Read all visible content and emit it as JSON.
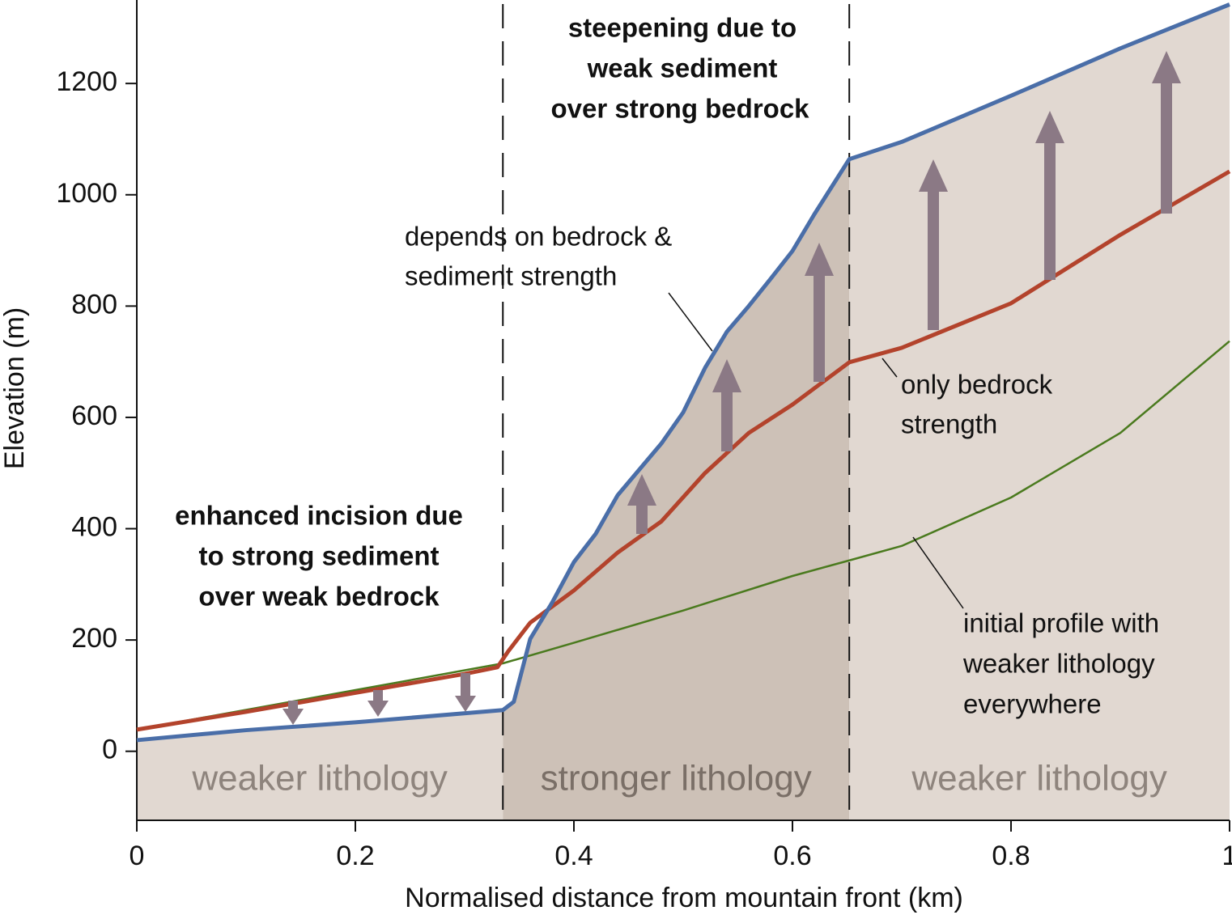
{
  "chart_data": {
    "type": "line",
    "x_label": "Normalised distance from mountain front (km)",
    "y_label": "Elevation (m)",
    "xlim": [
      0,
      1
    ],
    "ylim": [
      -124,
      1350
    ],
    "xticks": [
      0,
      0.2,
      0.4,
      0.6,
      0.8,
      1
    ],
    "yticks": [
      0,
      200,
      400,
      600,
      800,
      1000,
      1200
    ],
    "regions": [
      {
        "label": "weaker lithology",
        "x": [
          0,
          0.335
        ],
        "color": "#e1d8d1"
      },
      {
        "label": "stronger lithology",
        "x": [
          0.335,
          0.652
        ],
        "color": "#cdc1b7"
      },
      {
        "label": "weaker lithology",
        "x": [
          0.652,
          1
        ],
        "color": "#e1d8d1"
      }
    ],
    "series": [
      {
        "color": "#4a6ea8",
        "width": 5,
        "x": [
          0,
          0.1,
          0.2,
          0.335,
          0.345,
          0.36,
          0.38,
          0.4,
          0.42,
          0.44,
          0.48,
          0.5,
          0.52,
          0.54,
          0.56,
          0.58,
          0.6,
          0.62,
          0.652,
          0.7,
          0.8,
          0.9,
          1
        ],
        "values": [
          20,
          38,
          52,
          74,
          89,
          202,
          267,
          340,
          391,
          460,
          553,
          609,
          689,
          754,
          800,
          849,
          899,
          965,
          1064,
          1095,
          1178,
          1263,
          1342
        ]
      },
      {
        "color": "#b3432c",
        "width": 5,
        "x": [
          0,
          0.1,
          0.2,
          0.3,
          0.33,
          0.34,
          0.36,
          0.4,
          0.44,
          0.48,
          0.52,
          0.56,
          0.6,
          0.652,
          0.7,
          0.8,
          0.9,
          1
        ],
        "values": [
          39,
          71,
          105,
          139,
          151,
          180,
          231,
          289,
          357,
          413,
          500,
          572,
          623,
          699,
          725,
          805,
          928,
          1042
        ]
      },
      {
        "color": "#4a7a1e",
        "width": 2.5,
        "x": [
          0,
          0.2,
          0.335,
          0.4,
          0.5,
          0.6,
          0.652,
          0.7,
          0.8,
          0.9,
          1
        ],
        "values": [
          39,
          110,
          158,
          195,
          253,
          315,
          343,
          369,
          456,
          572,
          737
        ]
      }
    ],
    "annotations": [
      {
        "lines": [
          "steepening due to",
          "weak sediment",
          "over strong bedrock"
        ]
      },
      {
        "lines": [
          "depends on bedrock &",
          "sediment strength"
        ]
      },
      {
        "lines": [
          "enhanced incision due",
          "to strong sediment",
          "over weak bedrock"
        ]
      },
      {
        "lines": [
          "only bedrock",
          "strength"
        ]
      },
      {
        "lines": [
          "initial profile with",
          "weaker lithology",
          "everywhere"
        ]
      }
    ]
  }
}
